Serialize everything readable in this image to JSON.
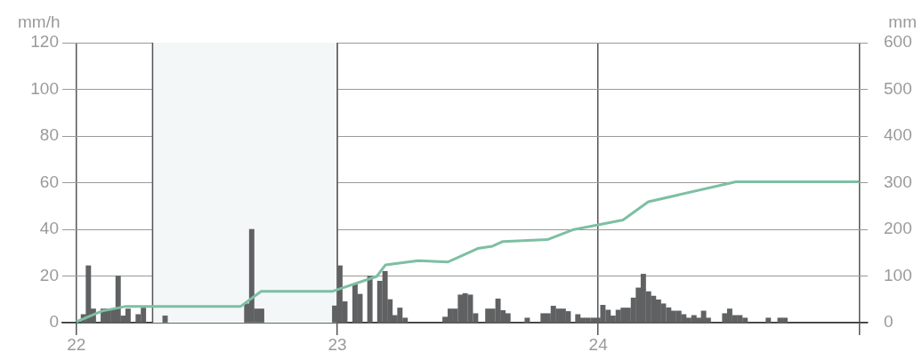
{
  "chart_data": {
    "type": "bar",
    "ylabel": "mm/h",
    "y2label": "mm",
    "xlim": [
      21.946,
      25.033
    ],
    "xticks": [
      22,
      23,
      24,
      {
        "value": 25,
        "label": null
      }
    ],
    "ylim": [
      0,
      120
    ],
    "yticks": [
      0,
      20,
      40,
      60,
      80,
      100,
      120
    ],
    "y2lim": [
      0,
      600
    ],
    "y2ticks": [
      0,
      100,
      200,
      300,
      400,
      500,
      600
    ],
    "grid": true,
    "legend": false,
    "marker": "none",
    "bands": [
      {
        "axis": "x",
        "from": 22.292,
        "to": 23,
        "color": "#f3f7f8"
      }
    ],
    "series": [
      {
        "color": "#5f6162",
        "x": [
          22.027,
          22.046,
          22.065,
          22.103,
          22.122,
          22.141,
          22.16,
          22.179,
          22.198,
          22.237,
          22.257,
          22.34,
          22.653,
          22.672,
          22.691,
          22.71,
          22.99,
          23.01,
          23.029,
          23.068,
          23.087,
          23.125,
          23.163,
          23.183,
          23.202,
          23.221,
          23.24,
          23.26,
          23.413,
          23.433,
          23.452,
          23.472,
          23.49,
          23.51,
          23.53,
          23.577,
          23.596,
          23.616,
          23.635,
          23.654,
          23.728,
          23.789,
          23.808,
          23.828,
          23.847,
          23.866,
          23.885,
          23.922,
          23.941,
          23.96,
          23.98,
          23.999,
          24.018,
          24.038,
          24.057,
          24.077,
          24.096,
          24.115,
          24.135,
          24.154,
          24.173,
          24.193,
          24.212,
          24.231,
          24.25,
          24.27,
          24.289,
          24.309,
          24.328,
          24.347,
          24.367,
          24.385,
          24.404,
          24.422,
          24.485,
          24.504,
          24.524,
          24.543,
          24.563,
          24.652,
          24.697,
          24.716
        ],
        "values": [
          3.5,
          24.4,
          5.9,
          5.9,
          5.9,
          5.9,
          20,
          2.9,
          5.9,
          3.5,
          6.3,
          2.9,
          8.1,
          40,
          5.9,
          5.9,
          7.2,
          24.4,
          9,
          16.6,
          12.2,
          19.9,
          17.8,
          22,
          9.9,
          3.1,
          6.3,
          2,
          2.4,
          5.9,
          5.9,
          11.9,
          12.5,
          11.9,
          3.9,
          5.9,
          5.9,
          10.2,
          5.2,
          3.9,
          2,
          3.9,
          3.9,
          7.1,
          5.9,
          5.9,
          4.8,
          3.5,
          2,
          2,
          2,
          2,
          7.5,
          5.4,
          2.9,
          5.4,
          6.3,
          6.3,
          10.6,
          14.9,
          20.8,
          13.3,
          11.4,
          9.8,
          8.1,
          6.4,
          5,
          5,
          3.5,
          2,
          3.1,
          2,
          5,
          2,
          3.9,
          5.9,
          3.1,
          3.1,
          2,
          2,
          2,
          2
        ]
      },
      {
        "type": "line",
        "axis": "y2",
        "color": "#7dbfa3",
        "x": [
          22,
          22.099,
          22.19,
          22.63,
          22.708,
          22.98,
          23.151,
          23.185,
          23.31,
          23.424,
          23.538,
          23.595,
          23.635,
          23.805,
          23.902,
          24.095,
          24.192,
          24.528,
          25
        ],
        "values": [
          2,
          25,
          35,
          35,
          67,
          67,
          99,
          124,
          133,
          130,
          159,
          164,
          174,
          178,
          199,
          220,
          259,
          302,
          302
        ]
      }
    ]
  }
}
